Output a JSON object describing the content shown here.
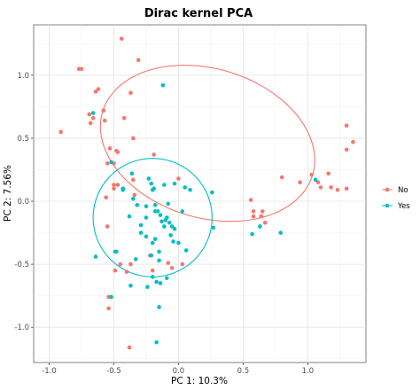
{
  "chart_data": {
    "type": "scatter",
    "title": "Dirac kernel PCA",
    "xlabel": "PC 1: 10.3%",
    "ylabel": "PC 2: 7.56%",
    "xlim": [
      -1.12,
      1.45
    ],
    "ylim": [
      -1.28,
      1.4
    ],
    "x_ticks": [
      -1.0,
      -0.5,
      0.0,
      0.5,
      1.0
    ],
    "x_tick_labels": [
      "-1.0",
      "-0.5",
      "0.0",
      "0.5",
      "1.0"
    ],
    "y_ticks": [
      -1.0,
      -0.5,
      0.0,
      0.5,
      1.0
    ],
    "y_tick_labels": [
      "-1.0",
      "-0.5",
      "0.0",
      "0.5",
      "1.0"
    ],
    "grid": true,
    "legend_position": "right",
    "series": [
      {
        "name": "No",
        "color": "#F8766D",
        "points": [
          [
            -0.44,
            1.29
          ],
          [
            -0.77,
            1.05
          ],
          [
            -0.75,
            1.05
          ],
          [
            -0.31,
            1.12
          ],
          [
            -0.64,
            0.87
          ],
          [
            -0.62,
            0.89
          ],
          [
            -0.37,
            0.86
          ],
          [
            -0.42,
            0.66
          ],
          [
            -0.68,
            0.62
          ],
          [
            -0.66,
            0.66
          ],
          [
            -0.69,
            0.69
          ],
          [
            -0.57,
            0.64
          ],
          [
            -0.58,
            0.72
          ],
          [
            -0.35,
            0.5
          ],
          [
            -0.53,
            0.42
          ],
          [
            -0.48,
            0.4
          ],
          [
            -0.47,
            0.39
          ],
          [
            -0.55,
            0.3
          ],
          [
            -0.5,
            0.3
          ],
          [
            -0.91,
            0.55
          ],
          [
            -0.19,
            0.37
          ],
          [
            -0.5,
            0.13
          ],
          [
            -0.47,
            0.13
          ],
          [
            -0.5,
            0.1
          ],
          [
            -0.56,
            0.03
          ],
          [
            -0.35,
            0.17
          ],
          [
            -0.34,
            0.05
          ],
          [
            0.0,
            0.18
          ],
          [
            -0.45,
            -0.5
          ],
          [
            -0.49,
            -0.55
          ],
          [
            -0.4,
            -0.56
          ],
          [
            -0.37,
            -0.5
          ],
          [
            -0.22,
            -0.43
          ],
          [
            -0.54,
            -0.76
          ],
          [
            -0.54,
            -0.85
          ],
          [
            -0.38,
            -1.16
          ],
          [
            -0.08,
            -0.49
          ],
          [
            -0.05,
            -0.53
          ],
          [
            0.03,
            -0.5
          ],
          [
            -0.2,
            -0.55
          ],
          [
            -0.55,
            -0.2
          ],
          [
            0.56,
            0.01
          ],
          [
            0.58,
            -0.08
          ],
          [
            0.58,
            -0.12
          ],
          [
            0.65,
            -0.08
          ],
          [
            0.64,
            -0.12
          ],
          [
            0.67,
            -0.17
          ],
          [
            0.8,
            0.19
          ],
          [
            0.94,
            0.15
          ],
          [
            1.03,
            0.21
          ],
          [
            1.08,
            0.15
          ],
          [
            1.1,
            0.11
          ],
          [
            1.16,
            0.22
          ],
          [
            1.18,
            0.11
          ],
          [
            1.23,
            0.09
          ],
          [
            1.3,
            0.6
          ],
          [
            1.3,
            0.41
          ],
          [
            1.35,
            0.47
          ],
          [
            1.3,
            0.1
          ]
        ]
      },
      {
        "name": "Yes",
        "color": "#00BFC4",
        "points": [
          [
            -0.66,
            0.7
          ],
          [
            -0.52,
            0.31
          ],
          [
            -0.12,
            0.92
          ],
          [
            -0.36,
            0.22
          ],
          [
            -0.43,
            0.1
          ],
          [
            -0.43,
            0.09
          ],
          [
            -0.35,
            0.02
          ],
          [
            -0.32,
            -0.03
          ],
          [
            -0.23,
            0.18
          ],
          [
            -0.21,
            0.14
          ],
          [
            -0.2,
            0.09
          ],
          [
            -0.19,
            0.1
          ],
          [
            -0.11,
            0.13
          ],
          [
            -0.03,
            0.14
          ],
          [
            0.05,
            0.11
          ],
          [
            0.09,
            0.09
          ],
          [
            0.26,
            0.07
          ],
          [
            -0.25,
            -0.04
          ],
          [
            -0.18,
            -0.03
          ],
          [
            -0.18,
            -0.08
          ],
          [
            -0.16,
            -0.08
          ],
          [
            -0.14,
            -0.11
          ],
          [
            -0.1,
            -0.15
          ],
          [
            -0.09,
            -0.13
          ],
          [
            -0.07,
            -0.17
          ],
          [
            -0.05,
            -0.2
          ],
          [
            -0.03,
            -0.22
          ],
          [
            0.03,
            -0.08
          ],
          [
            -0.08,
            -0.02
          ],
          [
            -0.11,
            -0.2
          ],
          [
            -0.13,
            -0.16
          ],
          [
            -0.25,
            -0.13
          ],
          [
            -0.29,
            -0.19
          ],
          [
            -0.38,
            -0.12
          ],
          [
            -0.29,
            -0.25
          ],
          [
            -0.25,
            -0.28
          ],
          [
            -0.2,
            -0.33
          ],
          [
            -0.06,
            -0.27
          ],
          [
            -0.04,
            -0.32
          ],
          [
            0.0,
            -0.33
          ],
          [
            -0.18,
            -0.3
          ],
          [
            -0.15,
            -0.4
          ],
          [
            -0.15,
            -0.47
          ],
          [
            -0.21,
            -0.43
          ],
          [
            -0.48,
            -0.4
          ],
          [
            -0.49,
            -0.4
          ],
          [
            -0.64,
            -0.44
          ],
          [
            -0.33,
            -0.46
          ],
          [
            -0.2,
            -0.6
          ],
          [
            -0.17,
            -0.64
          ],
          [
            -0.14,
            -0.65
          ],
          [
            -0.09,
            -0.61
          ],
          [
            -0.24,
            -0.68
          ],
          [
            -0.37,
            -0.67
          ],
          [
            -0.15,
            -0.84
          ],
          [
            -0.52,
            -0.76
          ],
          [
            -0.17,
            -1.12
          ],
          [
            0.27,
            -0.21
          ],
          [
            0.06,
            -0.39
          ],
          [
            0.57,
            -0.26
          ],
          [
            0.63,
            -0.2
          ],
          [
            0.79,
            -0.25
          ],
          [
            1.06,
            0.17
          ]
        ]
      }
    ],
    "ellipses": [
      {
        "series": "No",
        "center": [
          0.225,
          0.46
        ],
        "semi_axes": [
          0.85,
          0.59
        ],
        "angle_deg": -18
      },
      {
        "series": "Yes",
        "center": [
          -0.2,
          -0.13
        ],
        "semi_axes": [
          0.46,
          0.47
        ],
        "angle_deg": 0
      }
    ]
  }
}
